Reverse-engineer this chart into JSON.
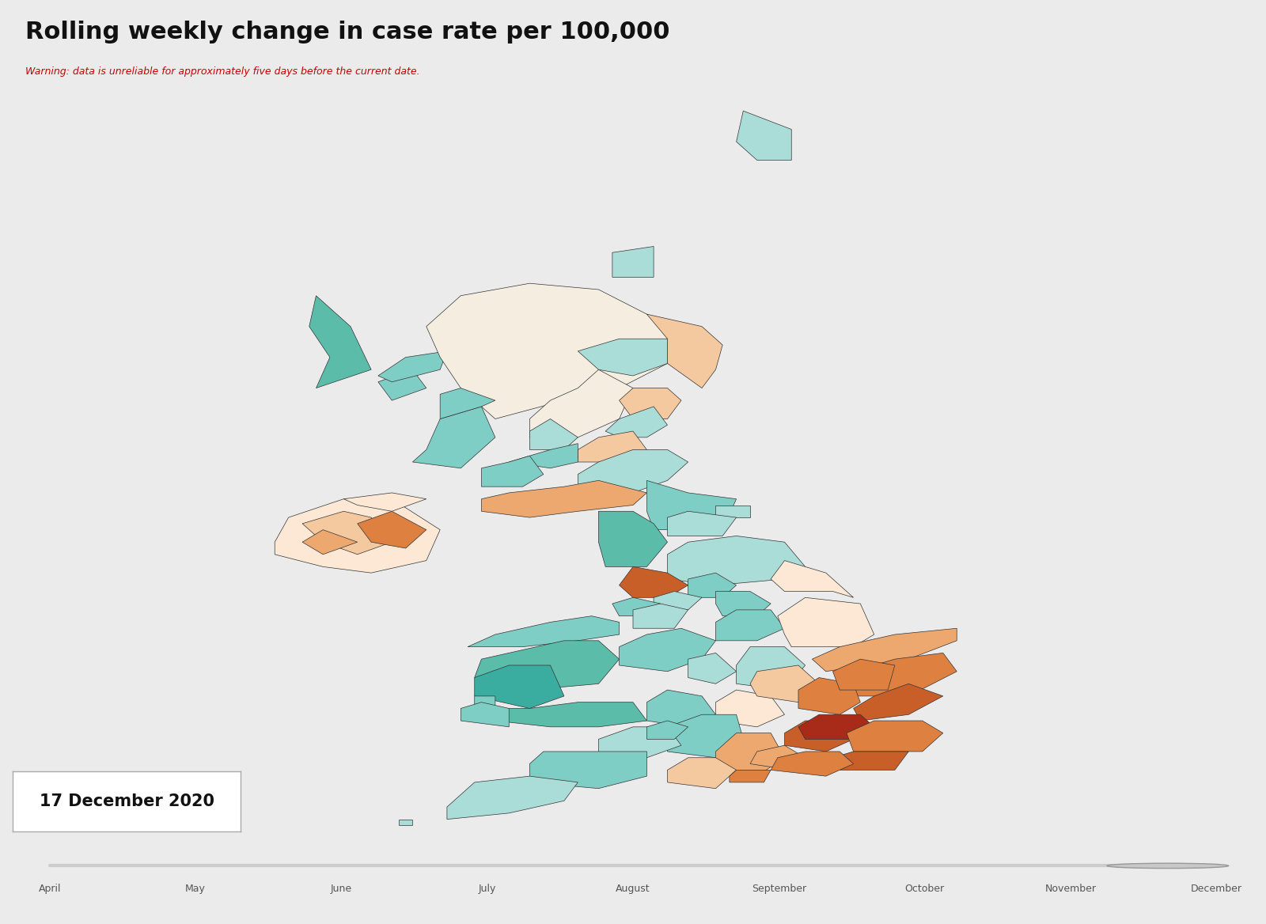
{
  "title": "Rolling weekly change in case rate per 100,000",
  "warning_text": "Warning: data is unreliable for approximately five days before the current date.",
  "date_label": "17 December 2020",
  "slider_labels": [
    "April",
    "May",
    "June",
    "July",
    "August",
    "September",
    "October",
    "November",
    "December"
  ],
  "background_color": "#ebebeb",
  "title_area_color": "#ffffff",
  "title_fontsize": 22,
  "warning_color": "#cc0000",
  "teal_dark": "#3aada0",
  "teal_mid": "#5bbcaa",
  "teal_light": "#7ecec5",
  "teal_vlight": "#aaddd8",
  "peach_vlight": "#fce8d5",
  "peach_light": "#f5c9a0",
  "peach_mid": "#eda870",
  "orange_mid": "#de8040",
  "orange_dark": "#c85e28",
  "red_dark": "#a82a18",
  "region_colors": {
    "Scotland_Highlands": "#f5ede0",
    "Scotland_Western": "#5bbcaa",
    "Scotland_NE": "#f5c9a0",
    "Scotland_Central": "#aaddd8",
    "Scotland_Argyll": "#7ecec5",
    "Scotland_Borders": "#aaddd8",
    "Scotland_Dumfries": "#f5c9a0",
    "NI": "#f5c9a0",
    "NI_mid": "#eda870",
    "Northumberland": "#7ecec5",
    "Durham": "#aaddd8",
    "Cumbria": "#5bbcaa",
    "N_Yorkshire": "#aaddd8",
    "W_Yorkshire": "#7ecec5",
    "E_Yorkshire": "#fce8d5",
    "Lancashire": "#c85e28",
    "Manchester": "#aaddd8",
    "Midlands": "#aaddd8",
    "SE_orange": "#de8040",
    "London": "#a82a18",
    "Kent": "#de8040",
    "SE_dark": "#c85e28"
  }
}
